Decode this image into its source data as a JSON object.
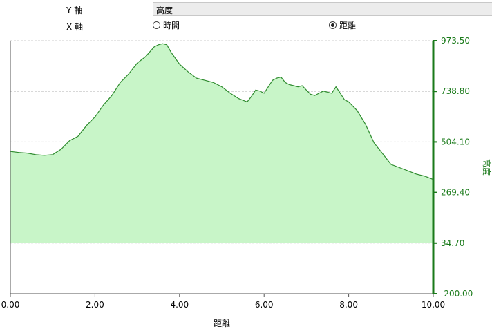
{
  "controls": {
    "y_axis_label": "Y 軸",
    "x_axis_label": "X 軸",
    "y_selected": "高度",
    "x_options": [
      {
        "label": "時間",
        "selected": false
      },
      {
        "label": "距離",
        "selected": true
      }
    ]
  },
  "colors": {
    "line": "#2e8b2e",
    "fill": "#c8f5c8",
    "right_axis": "#1a7a1a",
    "grid": "#cccccc"
  },
  "chart_data": {
    "type": "area",
    "xlabel": "距離",
    "ylabel": "高度",
    "xlim": [
      0,
      10
    ],
    "ylim": [
      -200,
      973.5
    ],
    "x_ticks": [
      "0.00",
      "2.00",
      "4.00",
      "6.00",
      "8.00",
      "10.00"
    ],
    "y_ticks": [
      "973.50",
      "738.80",
      "504.10",
      "269.40",
      "34.70",
      "-200.00"
    ],
    "fill_baseline": 34.7,
    "grid": true,
    "series": [
      {
        "x": [
          0,
          0.2,
          0.4,
          0.6,
          0.8,
          1.0,
          1.2,
          1.4,
          1.6,
          1.8,
          2.0,
          2.2,
          2.4,
          2.6,
          2.8,
          3.0,
          3.2,
          3.4,
          3.5,
          3.6,
          3.7,
          3.8,
          4.0,
          4.2,
          4.4,
          4.6,
          4.8,
          5.0,
          5.2,
          5.4,
          5.6,
          5.7,
          5.8,
          5.9,
          6.0,
          6.1,
          6.2,
          6.3,
          6.4,
          6.5,
          6.6,
          6.7,
          6.8,
          6.9,
          7.0,
          7.1,
          7.2,
          7.3,
          7.4,
          7.6,
          7.7,
          7.8,
          7.9,
          8.0,
          8.2,
          8.4,
          8.6,
          8.8,
          9.0,
          9.2,
          9.4,
          9.6,
          9.8,
          10.0
        ],
        "y": [
          460,
          455,
          452,
          445,
          442,
          445,
          470,
          510,
          530,
          580,
          620,
          675,
          720,
          780,
          820,
          870,
          900,
          945,
          955,
          960,
          955,
          920,
          865,
          830,
          800,
          790,
          780,
          760,
          730,
          705,
          690,
          715,
          745,
          740,
          730,
          760,
          790,
          800,
          805,
          780,
          770,
          765,
          760,
          765,
          745,
          725,
          720,
          730,
          740,
          730,
          760,
          730,
          700,
          690,
          650,
          585,
          500,
          450,
          400,
          385,
          370,
          355,
          345,
          330
        ]
      }
    ]
  }
}
